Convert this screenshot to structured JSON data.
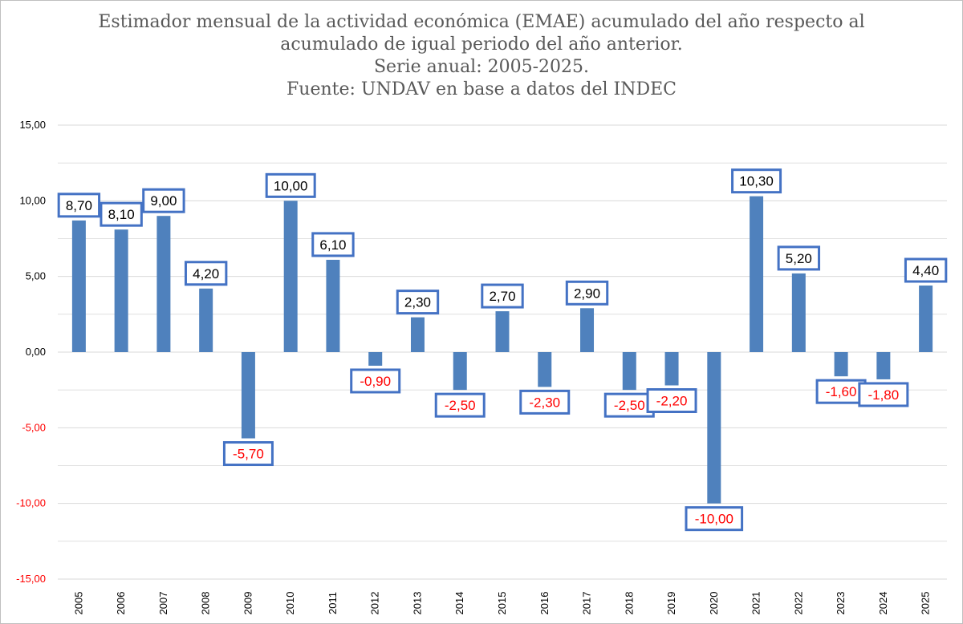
{
  "title_lines": [
    "Estimador mensual de la actividad económica (EMAE) acumulado del año respecto al",
    "acumulado de igual periodo del año anterior.",
    "Serie anual: 2005-2025.",
    "Fuente: UNDAV en base a datos del INDEC"
  ],
  "colors": {
    "bar": "#4f81bd",
    "label_box_border": "#4472c4",
    "positive_text": "#000000",
    "negative_text": "#ff0000",
    "grid": "#d9d9d9"
  },
  "chart_data": {
    "type": "bar",
    "title": "Estimador mensual de la actividad económica (EMAE) acumulado del año respecto al acumulado de igual periodo del año anterior. Serie anual: 2005-2025. Fuente: UNDAV en base a datos del INDEC",
    "categories": [
      "2005",
      "2006",
      "2007",
      "2008",
      "2009",
      "2010",
      "2011",
      "2012",
      "2013",
      "2014",
      "2015",
      "2016",
      "2017",
      "2018",
      "2019",
      "2020",
      "2021",
      "2022",
      "2023",
      "2024",
      "2025"
    ],
    "values": [
      8.7,
      8.1,
      9.0,
      4.2,
      -5.7,
      10.0,
      6.1,
      -0.9,
      2.3,
      -2.5,
      2.7,
      -2.3,
      2.9,
      -2.5,
      -2.2,
      -10.0,
      10.3,
      5.2,
      -1.6,
      -1.8,
      4.4
    ],
    "data_labels": [
      "8,70",
      "8,10",
      "9,00",
      "4,20",
      "-5,70",
      "10,00",
      "6,10",
      "-0,90",
      "2,30",
      "-2,50",
      "2,70",
      "-2,30",
      "2,90",
      "-2,50",
      "-2,20",
      "-10,00",
      "10,30",
      "5,20",
      "-1,60",
      "-1,80",
      "4,40"
    ],
    "y_ticks": [
      15,
      10,
      5,
      0,
      -5,
      -10,
      -15
    ],
    "y_tick_labels": [
      "15,00",
      "10,00",
      "5,00",
      "0,00",
      "-5,00",
      "-10,00",
      "-15,00"
    ],
    "ylim": [
      -15,
      15
    ],
    "xlabel": "",
    "ylabel": "",
    "grid": true,
    "legend": "none"
  }
}
